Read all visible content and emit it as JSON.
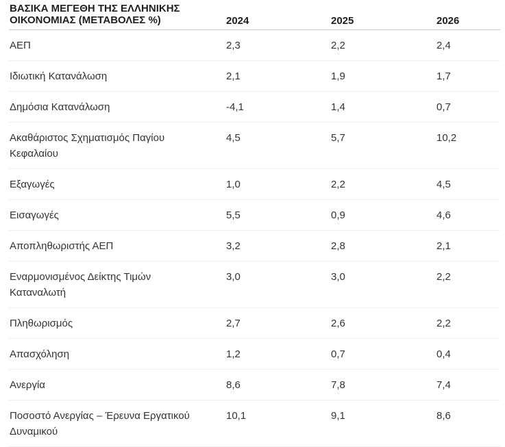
{
  "table": {
    "title": "ΒΑΣΙΚΑ ΜΕΓΕΘΗ ΤΗΣ ΕΛΛΗΝΙΚΗΣ ΟΙΚΟΝΟΜΙΑΣ (ΜΕΤΑΒΟΛΕΣ %)",
    "columns": [
      "2024",
      "2025",
      "2026"
    ],
    "rows": [
      {
        "label": "ΑΕΠ",
        "values": [
          "2,3",
          "2,2",
          "2,4"
        ]
      },
      {
        "label": "Ιδιωτική Κατανάλωση",
        "values": [
          "2,1",
          "1,9",
          "1,7"
        ]
      },
      {
        "label": "Δημόσια Κατανάλωση",
        "values": [
          "-4,1",
          "1,4",
          "0,7"
        ]
      },
      {
        "label": "Ακαθάριστος Σχηματισμός Παγίου Κεφαλαίου",
        "values": [
          "4,5",
          "5,7",
          "10,2"
        ]
      },
      {
        "label": "Εξαγωγές",
        "values": [
          "1,0",
          "2,2",
          "4,5"
        ]
      },
      {
        "label": "Εισαγωγές",
        "values": [
          "5,5",
          "0,9",
          "4,6"
        ]
      },
      {
        "label": "Αποπληθωριστής ΑΕΠ",
        "values": [
          "3,2",
          "2,8",
          "2,1"
        ]
      },
      {
        "label": "Εναρμονισμένος Δείκτης Τιμών Καταναλωτή",
        "values": [
          "3,0",
          "3,0",
          "2,2"
        ]
      },
      {
        "label": "Πληθωρισμός",
        "values": [
          "2,7",
          "2,6",
          "2,2"
        ]
      },
      {
        "label": "Απασχόληση",
        "values": [
          "1,2",
          "0,7",
          "0,4"
        ]
      },
      {
        "label": "Ανεργία",
        "values": [
          "8,6",
          "7,8",
          "7,4"
        ]
      },
      {
        "label": "Ποσοστό Ανεργίας – Έρευνα Εργατικού Δυναμικού",
        "values": [
          "10,1",
          "9,1",
          "8,6"
        ]
      }
    ],
    "colors": {
      "text": "#333333",
      "header_text": "#1f1f1f",
      "header_rule": "#c9c9c9",
      "row_rule": "#efefef",
      "background": "#ffffff"
    }
  },
  "chart_data": {
    "type": "table",
    "title": "ΒΑΣΙΚΑ ΜΕΓΕΘΗ ΤΗΣ ΕΛΛΗΝΙΚΗΣ ΟΙΚΟΝΟΜΙΑΣ (ΜΕΤΑΒΟΛΕΣ %)",
    "categories": [
      "ΑΕΠ",
      "Ιδιωτική Κατανάλωση",
      "Δημόσια Κατανάλωση",
      "Ακαθάριστος Σχηματισμός Παγίου Κεφαλαίου",
      "Εξαγωγές",
      "Εισαγωγές",
      "Αποπληθωριστής ΑΕΠ",
      "Εναρμονισμένος Δείκτης Τιμών Καταναλωτή",
      "Πληθωρισμός",
      "Απασχόληση",
      "Ανεργία",
      "Ποσοστό Ανεργίας – Έρευνα Εργατικού Δυναμικού"
    ],
    "series": [
      {
        "name": "2024",
        "values": [
          2.3,
          2.1,
          -4.1,
          4.5,
          1.0,
          5.5,
          3.2,
          3.0,
          2.7,
          1.2,
          8.6,
          10.1
        ]
      },
      {
        "name": "2025",
        "values": [
          2.2,
          1.9,
          1.4,
          5.7,
          2.2,
          0.9,
          2.8,
          3.0,
          2.6,
          0.7,
          7.8,
          9.1
        ]
      },
      {
        "name": "2026",
        "values": [
          2.4,
          1.7,
          0.7,
          10.2,
          4.5,
          4.6,
          2.1,
          2.2,
          2.2,
          0.4,
          7.4,
          8.6
        ]
      }
    ],
    "unit": "percent change"
  }
}
